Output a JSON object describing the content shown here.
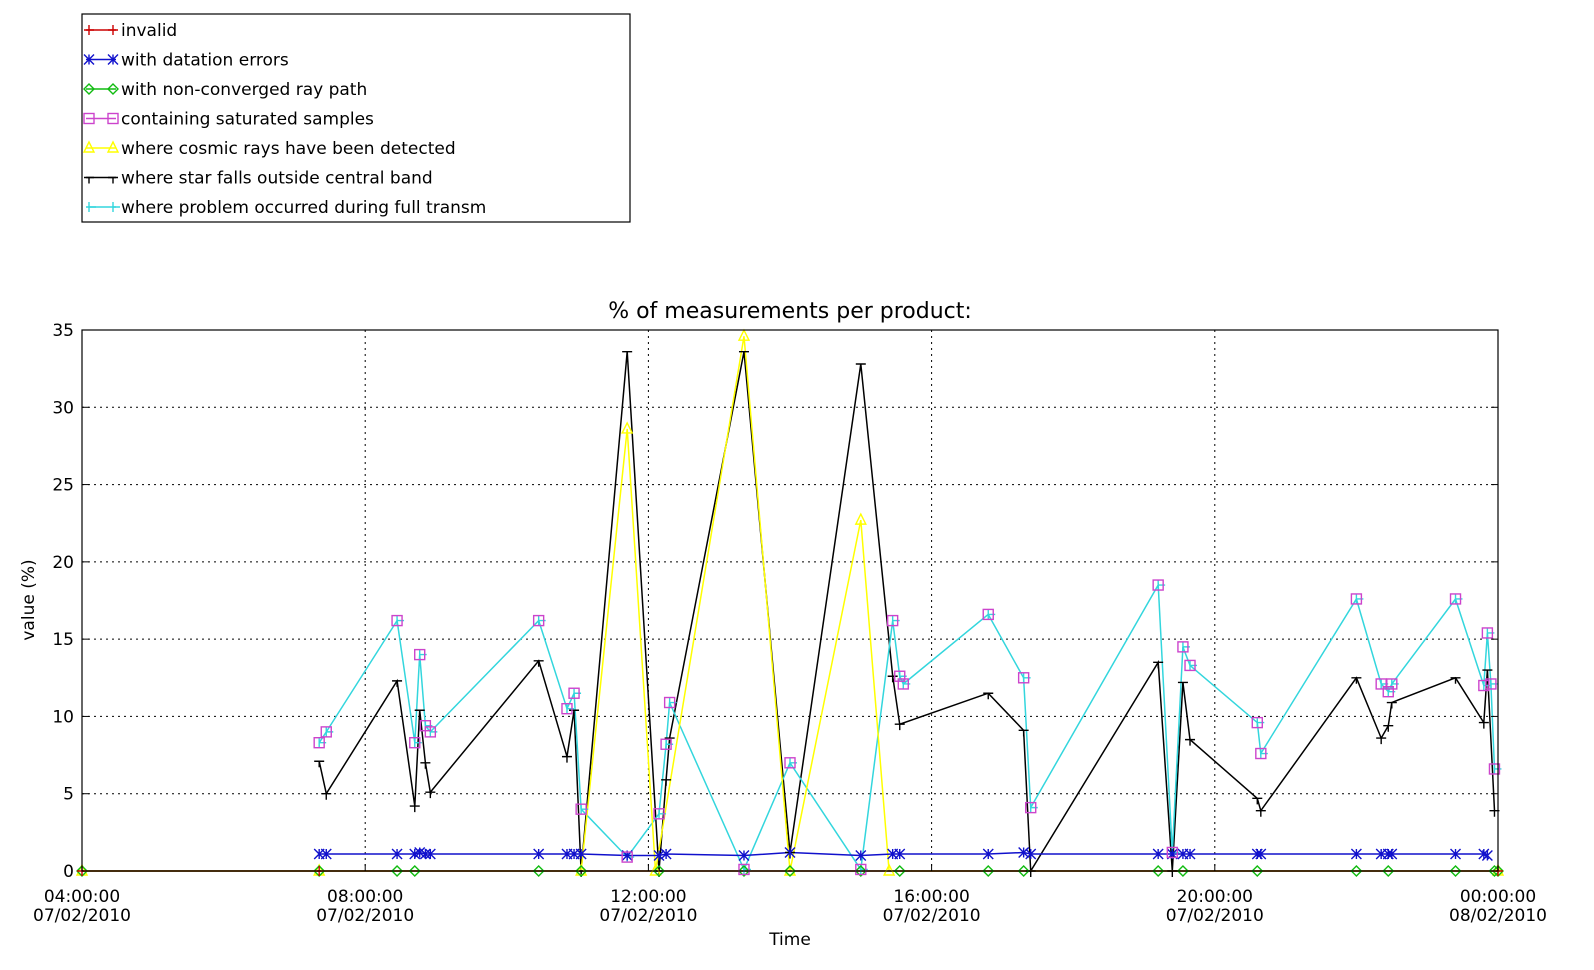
{
  "chart_data": {
    "type": "line",
    "title": "% of measurements per product:",
    "xlabel": "Time",
    "ylabel": "value (%)",
    "x_unit": "hours",
    "xlim": [
      4,
      24
    ],
    "ylim": [
      0,
      35
    ],
    "x_ticks": [
      {
        "value": 4,
        "time": "04:00:00",
        "date": "07/02/2010"
      },
      {
        "value": 8,
        "time": "08:00:00",
        "date": "07/02/2010"
      },
      {
        "value": 12,
        "time": "12:00:00",
        "date": "07/02/2010"
      },
      {
        "value": 16,
        "time": "16:00:00",
        "date": "07/02/2010"
      },
      {
        "value": 20,
        "time": "20:00:00",
        "date": "07/02/2010"
      },
      {
        "value": 24,
        "time": "00:00:00",
        "date": "08/02/2010"
      }
    ],
    "y_ticks": [
      0,
      5,
      10,
      15,
      20,
      25,
      30,
      35
    ],
    "grid": "dotted",
    "legend_position": "top-left, above plot",
    "series": [
      {
        "name": "invalid",
        "color": "#cc0000",
        "marker": "plus",
        "x": [
          4.0,
          7.35,
          24.0
        ],
        "y": [
          0.0,
          0.0,
          0.0
        ]
      },
      {
        "name": "with datation errors",
        "color": "#1010cc",
        "marker": "x",
        "x": [
          7.35,
          7.45,
          8.45,
          8.7,
          8.77,
          8.85,
          8.92,
          10.45,
          10.85,
          10.95,
          11.05,
          11.7,
          12.15,
          12.25,
          13.35,
          14.0,
          15.0,
          15.45,
          15.55,
          16.8,
          17.3,
          17.4,
          19.2,
          19.4,
          19.55,
          19.65,
          20.6,
          20.65,
          22.0,
          22.35,
          22.45,
          22.5,
          23.4,
          23.8,
          23.85
        ],
        "y": [
          1.1,
          1.1,
          1.1,
          1.1,
          1.2,
          1.1,
          1.1,
          1.1,
          1.1,
          1.1,
          1.1,
          1.0,
          1.0,
          1.1,
          1.0,
          1.2,
          1.0,
          1.1,
          1.1,
          1.1,
          1.2,
          1.1,
          1.1,
          1.1,
          1.1,
          1.1,
          1.1,
          1.1,
          1.1,
          1.1,
          1.1,
          1.1,
          1.1,
          1.1,
          1.0
        ]
      },
      {
        "name": "with non-converged ray path",
        "color": "#10bb10",
        "marker": "diamond",
        "x": [
          4.0,
          7.35,
          8.45,
          8.7,
          10.45,
          11.05,
          12.15,
          13.35,
          14.0,
          15.0,
          15.55,
          16.8,
          17.3,
          19.2,
          19.55,
          20.6,
          22.0,
          22.45,
          23.4,
          23.95,
          24.0
        ],
        "y": [
          0.0,
          0.0,
          0.0,
          0.0,
          0.0,
          0.0,
          0.0,
          0.0,
          0.0,
          0.0,
          0.0,
          0.0,
          0.0,
          0.0,
          0.0,
          0.0,
          0.0,
          0.0,
          0.0,
          0.0,
          0.0
        ]
      },
      {
        "name": "containing saturated samples",
        "color": "#cc44cc",
        "marker": "square",
        "x": [
          7.35,
          7.45,
          8.45,
          8.7,
          8.77,
          8.85,
          8.92,
          10.45,
          10.85,
          10.95,
          11.05,
          11.7,
          12.15,
          12.25,
          12.3,
          13.35,
          14.0,
          15.0,
          15.45,
          15.55,
          15.6,
          16.8,
          17.3,
          17.4,
          19.2,
          19.4,
          19.55,
          19.65,
          20.6,
          20.65,
          22.0,
          22.35,
          22.45,
          22.5,
          23.4,
          23.8,
          23.85,
          23.9,
          23.95
        ],
        "y": [
          8.3,
          9.0,
          16.2,
          8.3,
          14.0,
          9.4,
          9.0,
          16.2,
          10.5,
          11.5,
          4.0,
          0.9,
          3.7,
          8.2,
          10.9,
          0.1,
          7.0,
          0.1,
          16.2,
          12.6,
          12.1,
          16.6,
          12.5,
          4.1,
          18.5,
          1.2,
          14.5,
          13.3,
          9.6,
          7.6,
          17.6,
          12.1,
          11.6,
          12.1,
          17.6,
          12.0,
          15.4,
          12.1,
          6.6
        ]
      },
      {
        "name": "where cosmic rays have been detected",
        "color": "#ffff00",
        "marker": "triangle",
        "x": [
          4.0,
          7.35,
          11.05,
          11.7,
          12.1,
          13.35,
          14.0,
          15.0,
          15.4,
          24.0
        ],
        "y": [
          0.0,
          0.0,
          0.0,
          28.6,
          0.0,
          34.6,
          0.0,
          22.7,
          0.0,
          0.0
        ]
      },
      {
        "name": "where star falls outside central band",
        "color": "#000000",
        "marker": "tee",
        "x": [
          7.35,
          7.45,
          8.45,
          8.7,
          8.77,
          8.85,
          8.92,
          10.45,
          10.85,
          10.95,
          11.05,
          11.7,
          12.15,
          12.25,
          12.3,
          13.35,
          14.0,
          15.0,
          15.45,
          15.55,
          16.8,
          17.3,
          17.4,
          19.2,
          19.4,
          19.55,
          19.65,
          20.6,
          20.65,
          22.0,
          22.35,
          22.45,
          22.5,
          23.4,
          23.8,
          23.85,
          23.95
        ],
        "y": [
          7.1,
          5.0,
          12.3,
          4.2,
          10.4,
          7.0,
          5.1,
          13.6,
          7.4,
          10.4,
          0.0,
          33.6,
          0.0,
          5.9,
          8.6,
          33.6,
          1.2,
          32.8,
          12.6,
          9.5,
          11.5,
          9.1,
          0.0,
          13.5,
          0.0,
          12.2,
          8.5,
          4.7,
          3.9,
          12.5,
          8.6,
          9.4,
          10.9,
          12.5,
          9.6,
          13.0,
          3.9
        ]
      },
      {
        "name": "where problem occurred during full transm",
        "color": "#33d6dd",
        "marker": "vtee",
        "x": [
          7.35,
          7.45,
          8.45,
          8.7,
          8.77,
          8.85,
          8.92,
          10.45,
          10.85,
          10.95,
          11.05,
          11.7,
          12.15,
          12.25,
          12.3,
          13.35,
          14.0,
          15.0,
          15.45,
          15.55,
          15.6,
          16.8,
          17.3,
          17.4,
          19.2,
          19.4,
          19.55,
          19.65,
          20.6,
          20.65,
          22.0,
          22.35,
          22.45,
          22.5,
          23.4,
          23.8,
          23.85,
          23.9,
          23.95
        ],
        "y": [
          8.3,
          9.0,
          16.2,
          8.3,
          14.0,
          9.4,
          9.0,
          16.2,
          10.5,
          11.5,
          4.0,
          0.9,
          3.7,
          8.2,
          10.9,
          0.1,
          7.0,
          0.1,
          16.2,
          12.6,
          12.1,
          16.6,
          12.5,
          4.1,
          18.5,
          1.2,
          14.5,
          13.3,
          9.6,
          7.6,
          17.6,
          12.1,
          11.6,
          12.1,
          17.6,
          12.0,
          15.4,
          12.1,
          6.6
        ]
      }
    ]
  }
}
